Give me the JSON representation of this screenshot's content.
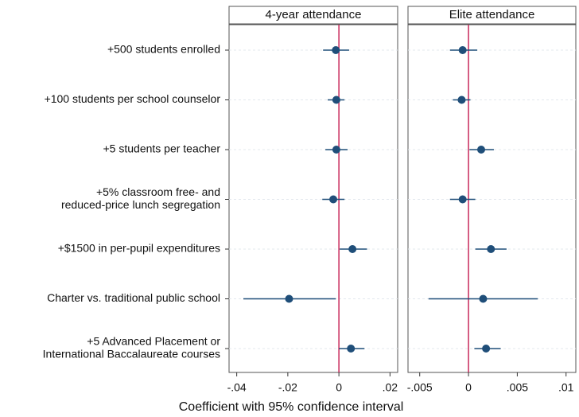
{
  "chart_data": {
    "type": "coefplot",
    "xlabel": "Coefficient with 95% confidence interval",
    "color": "#1f4e79",
    "reference_color": "#c8285a",
    "categories": [
      [
        "+500 students enrolled"
      ],
      [
        "+100 students per school counselor"
      ],
      [
        "+5 students per teacher"
      ],
      [
        "+5% classroom free- and",
        "reduced-price lunch segregation"
      ],
      [
        "+$1500 in per-pupil expenditures"
      ],
      [
        "Charter vs. traditional public school"
      ],
      [
        "+5 Advanced Placement or",
        "International Baccalaureate courses"
      ]
    ],
    "panels": [
      {
        "title": "4-year attendance",
        "values": [
          -0.0012,
          -0.001,
          -0.001,
          -0.0022,
          0.0053,
          -0.0195,
          0.0047
        ],
        "lower": [
          -0.0062,
          -0.0044,
          -0.0053,
          -0.0065,
          0.0003,
          -0.0374,
          0.0
        ],
        "upper": [
          0.004,
          0.0022,
          0.0034,
          0.0022,
          0.011,
          -0.0012,
          0.01
        ],
        "xlim": [
          -0.043,
          0.023
        ],
        "xticks": [
          {
            "value": -0.04,
            "label": "-.04"
          },
          {
            "value": -0.02,
            "label": "-.02"
          },
          0,
          {
            "value": 0.02,
            "label": ".02"
          }
        ]
      },
      {
        "title": "Elite attendance",
        "values": [
          -0.0006,
          -0.0007,
          0.0013,
          -0.0006,
          0.0023,
          0.0015,
          0.0018
        ],
        "lower": [
          -0.0019,
          -0.0016,
          0.0001,
          -0.0019,
          0.0007,
          -0.0041,
          0.0006
        ],
        "upper": [
          0.0009,
          0.0002,
          0.0026,
          0.0007,
          0.0039,
          0.0071,
          0.0033
        ],
        "xlim": [
          -0.0062,
          0.011
        ],
        "xticks": [
          {
            "value": -0.005,
            "label": "-.005"
          },
          0,
          {
            "value": 0.005,
            "label": ".005"
          },
          {
            "value": 0.01,
            "label": ".01"
          }
        ]
      }
    ]
  }
}
